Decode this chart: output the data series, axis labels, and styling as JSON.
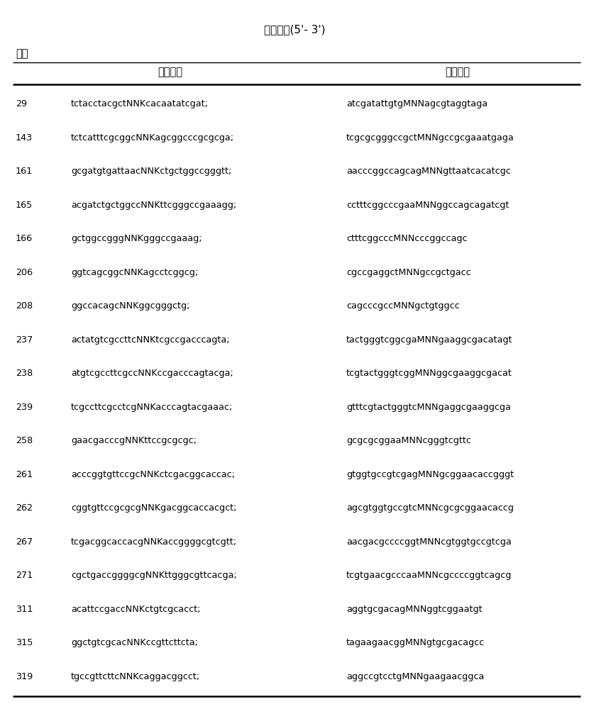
{
  "title": "引物序列(5'- 3')",
  "col_weidin": "位点",
  "col_forward": "正向引物",
  "col_reverse": "反向引物",
  "rows": [
    [
      "29",
      "tctacctacgctNNKcacaatatcgat;",
      "atcgatattgtgMNNagcgtaggtaga"
    ],
    [
      "143",
      "tctcatttcgcggcNNKagcggcccgcgcga;",
      "tcgcgcgggccgctMNNgccgcgaaatgaga"
    ],
    [
      "161",
      "gcgatgtgattaacNNKctgctggccgggtt;",
      "aacccggccagcagMNNgttaatcacatcgc"
    ],
    [
      "165",
      "acgatctgctggccNNKttcgggccgaaagg;",
      "cctttcggcccgaaMNNggccagcagatcgt"
    ],
    [
      "166",
      "gctggccgggNNKgggccgaaag;",
      "ctttcggcccMNNcccggccagc"
    ],
    [
      "206",
      "ggtcagcggcNNKagcctcggcg;",
      "cgccgaggctMNNgccgctgacc"
    ],
    [
      "208",
      "ggccacagcNNKggcgggctg;",
      "cagcccgccMNNgctgtggcc"
    ],
    [
      "237",
      "actatgtcgccttcNNKtcgccgacccagta;",
      "tactgggtcggcgaMNNgaaggcgacatagt"
    ],
    [
      "238",
      "atgtcgccttcgccNNKccgacccagtacga;",
      "tcgtactgggtcggMNNggcgaaggcgacat"
    ],
    [
      "239",
      "tcgccttcgcctcgNNKacccagtacgaaac;",
      "gtttcgtactgggtcMNNgaggcgaaggcga"
    ],
    [
      "258",
      "gaacgacccgNNKttccgcgcgc;",
      "gcgcgcggaaMNNcgggtcgttc"
    ],
    [
      "261",
      "acccggtgttccgcNNKctcgacggcaccac;",
      "gtggtgccgtcgagMNNgcggaacaccgggt"
    ],
    [
      "262",
      "cggtgttccgcgcgNNKgacggcaccacgct;",
      "agcgtggtgccgtcMNNcgcgcggaacaccg"
    ],
    [
      "267",
      "tcgacggcaccacgNNKaccggggcgtcgtt;",
      "aacgacgccccggtMNNcgtggtgccgtcga"
    ],
    [
      "271",
      "cgctgaccggggcgNNKttgggcgttcacga;",
      "tcgtgaacgcccaaMNNcgccccggtcagcg"
    ],
    [
      "311",
      "acattccgaccNNKctgtcgcacct;",
      "aggtgcgacagMNNggtcggaatgt"
    ],
    [
      "315",
      "ggctgtcgcacNNKccgttcttcta;",
      "tagaagaacggMNNgtgcgacagcc"
    ],
    [
      "319",
      "tgccgttcttcNNKcaggacggcct;",
      "aggccgtcctgMNNgaagaacggca"
    ]
  ],
  "bg_color": "#ffffff",
  "text_color": "#000000",
  "title_fontsize": 11,
  "header_fontsize": 10.5,
  "data_fontsize": 9.2,
  "weidian_fontsize": 10.5
}
